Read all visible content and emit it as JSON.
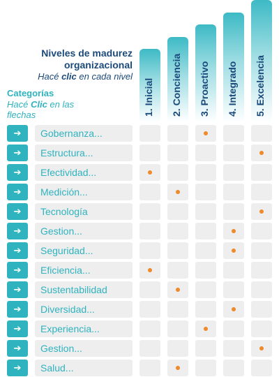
{
  "header": {
    "title": "Niveles de madurez organizacional",
    "subtitle_pre": "Hacé ",
    "subtitle_em": "clic",
    "subtitle_post": " en cada nivel"
  },
  "categories_header": {
    "title": "Categorías",
    "subtitle_pre": "Hacé ",
    "subtitle_em": "Clic",
    "subtitle_post": " en las flechas"
  },
  "arrow_glyph": "➔",
  "accent_color": "#2fb3bf",
  "dot_color": "#ef8a2a",
  "levels": [
    {
      "label": "1. Inicial",
      "height_fraction": 0.6
    },
    {
      "label": "2. Conciencia",
      "height_fraction": 0.7
    },
    {
      "label": "3. Proactivo",
      "height_fraction": 0.8
    },
    {
      "label": "4. Integrado",
      "height_fraction": 0.9
    },
    {
      "label": "5. Excelencia",
      "height_fraction": 1.0
    }
  ],
  "rows": [
    {
      "label": "Gobernanza...",
      "level": 3
    },
    {
      "label": "Estructura...",
      "level": 5
    },
    {
      "label": "Efectividad...",
      "level": 1
    },
    {
      "label": "Medición...",
      "level": 2
    },
    {
      "label": "Tecnología",
      "level": 5
    },
    {
      "label": "Gestion...",
      "level": 4
    },
    {
      "label": "Seguridad...",
      "level": 4
    },
    {
      "label": "Eficiencia...",
      "level": 1
    },
    {
      "label": "Sustentabilidad",
      "level": 2
    },
    {
      "label": "Diversidad...",
      "level": 4
    },
    {
      "label": "Experiencia...",
      "level": 3
    },
    {
      "label": "Gestion...",
      "level": 5
    },
    {
      "label": "Salud...",
      "level": 2
    }
  ]
}
